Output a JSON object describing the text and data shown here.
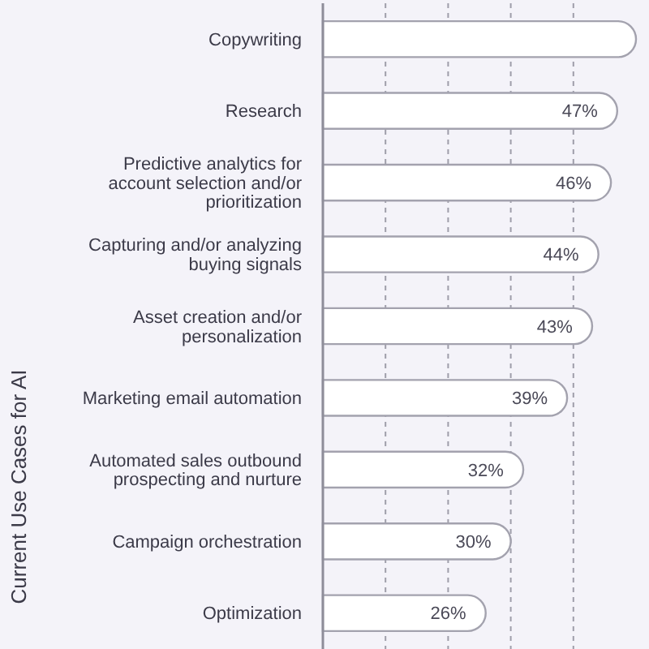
{
  "chart_data": {
    "type": "bar",
    "orientation": "horizontal",
    "ylabel": "Current Use Cases for AI",
    "categories": [
      "Copywriting",
      "Research",
      "Predictive analytics for account selection and/or prioritization",
      "Capturing and/or analyzing buying signals",
      "Asset creation and/or personalization",
      "Marketing email automation",
      "Automated sales outbound prospecting and nurture",
      "Campaign orchestration",
      "Optimization"
    ],
    "values": [
      50,
      47,
      46,
      44,
      43,
      39,
      32,
      30,
      26
    ],
    "color": "#ffffff",
    "value_labels": [
      null,
      "47%",
      "46%",
      "44%",
      "43%",
      "39%",
      "32%",
      "30%",
      "26%"
    ],
    "xlim": [
      0,
      50
    ],
    "xticks": [
      {
        "value": 10,
        "label": null
      },
      {
        "value": 20,
        "label": null
      },
      {
        "value": 30,
        "label": null
      },
      {
        "value": 40,
        "label": null
      }
    ],
    "grid": "x",
    "tick_labels": "y"
  }
}
